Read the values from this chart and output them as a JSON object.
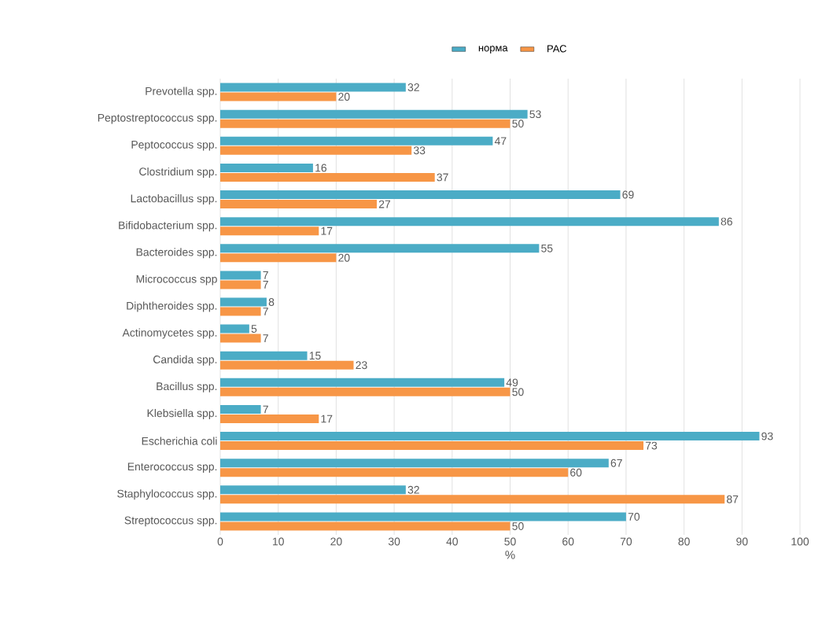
{
  "chart_data": {
    "type": "bar",
    "orientation": "horizontal",
    "categories": [
      "Prevotella spp.",
      "Peptostreptococcus spp.",
      "Peptococcus spp.",
      "Clostridium spp.",
      "Lactobacillus spp.",
      "Bifidobacterium spp.",
      "Bacteroides spp.",
      "Micrococcus spp",
      "Diphtheroides spp.",
      "Actinomycetes spp.",
      "Candida spp.",
      "Bacillus spp.",
      "Klebsiella spp.",
      "Escherichia coli",
      "Enterococcus spp.",
      "Staphylococcus spp.",
      "Streptococcus spp."
    ],
    "series": [
      {
        "name": "норма",
        "color": "#4bacc6",
        "values": [
          32,
          53,
          47,
          16,
          69,
          86,
          55,
          7,
          8,
          5,
          15,
          49,
          7,
          93,
          67,
          32,
          70
        ]
      },
      {
        "name": "РАС",
        "color": "#f79646",
        "values": [
          20,
          50,
          33,
          37,
          27,
          17,
          20,
          7,
          7,
          7,
          23,
          50,
          17,
          73,
          60,
          87,
          50
        ]
      }
    ],
    "xlim": [
      0,
      100
    ],
    "xticks": [
      0,
      10,
      20,
      30,
      40,
      50,
      60,
      70,
      80,
      90,
      100
    ],
    "xlabel": "%",
    "grid": "x",
    "legend": "top",
    "data_labels": true
  }
}
